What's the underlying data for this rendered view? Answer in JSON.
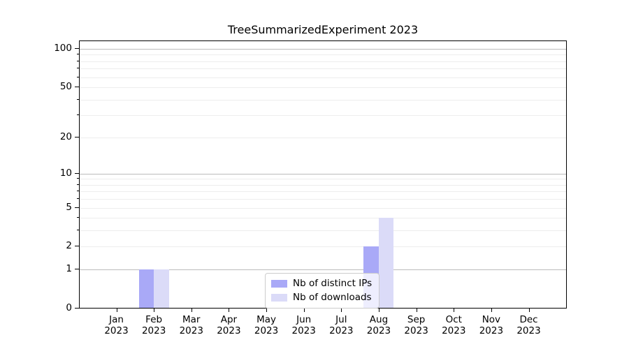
{
  "chart_data": {
    "type": "bar",
    "title": "TreeSummarizedExperiment 2023",
    "categories": [
      "Jan",
      "Feb",
      "Mar",
      "Apr",
      "May",
      "Jun",
      "Jul",
      "Aug",
      "Sep",
      "Oct",
      "Nov",
      "Dec"
    ],
    "year": "2023",
    "series": [
      {
        "name": "Nb of distinct IPs",
        "color": "#a9a9f7",
        "values": [
          0,
          1,
          0,
          0,
          0,
          0,
          0,
          2,
          0,
          0,
          0,
          0
        ]
      },
      {
        "name": "Nb of downloads",
        "color": "#dbdbf8",
        "values": [
          0,
          1,
          0,
          0,
          0,
          0,
          0,
          4,
          0,
          0,
          0,
          0
        ]
      }
    ],
    "xlabel": "",
    "ylabel": "",
    "yscale": "log1p",
    "ylim": [
      0,
      100
    ],
    "y_tick_values": [
      0,
      1,
      2,
      5,
      10,
      20,
      50,
      100
    ],
    "major_gridlines": [
      1,
      10,
      100
    ],
    "minor_gridlines": [
      2,
      3,
      4,
      5,
      6,
      7,
      8,
      9,
      20,
      30,
      40,
      50,
      60,
      70,
      80,
      90
    ],
    "grid": "horizontal",
    "legend_position": "lower center"
  },
  "colors": {
    "major_grid": "#bbbbbb",
    "minor_grid": "#ededed",
    "spine": "#000000",
    "text": "#000000",
    "legend_border": "#cccccc"
  }
}
